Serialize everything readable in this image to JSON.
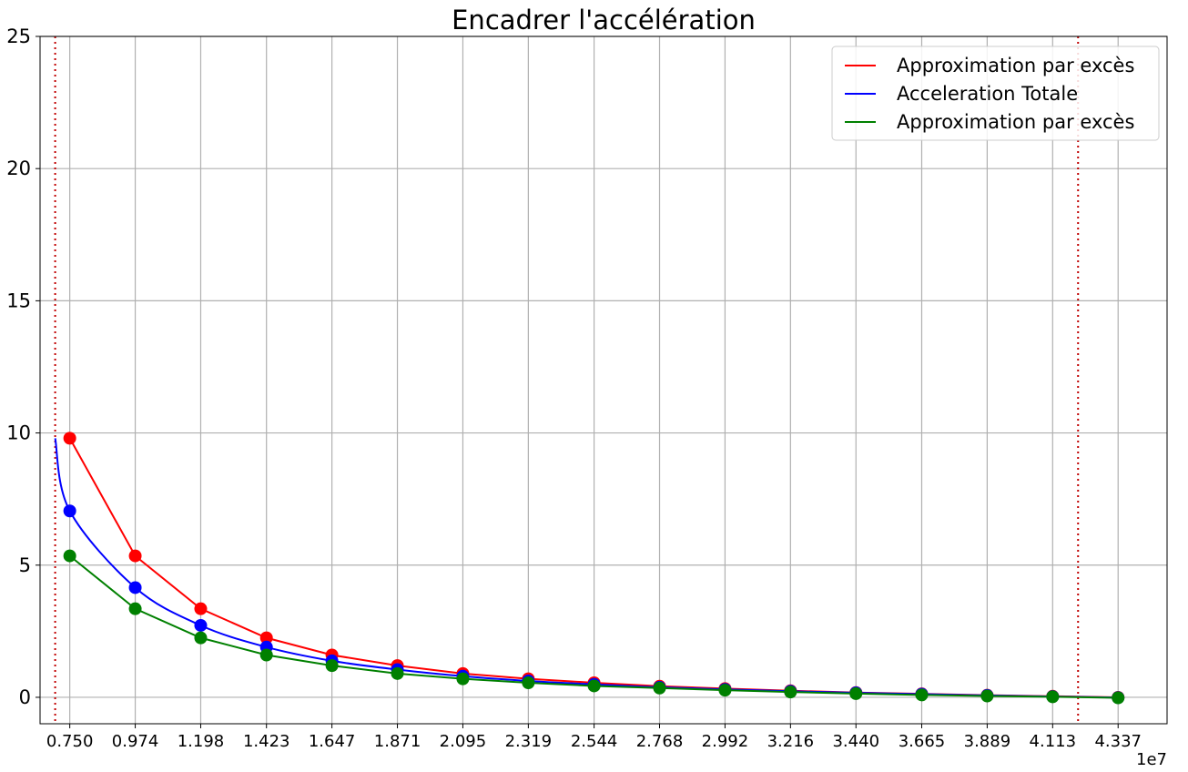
{
  "chart_data": {
    "type": "line",
    "title": "Encadrer l'accélération",
    "xlabel": "",
    "ylabel": "",
    "x_offset_label": "1e7",
    "xlim": [
      0.6483,
      4.5045
    ],
    "ylim": [
      -1,
      25
    ],
    "xticks": [
      "0.750",
      "0.974",
      "1.198",
      "1.423",
      "1.647",
      "1.871",
      "2.095",
      "2.319",
      "2.544",
      "2.768",
      "2.992",
      "3.216",
      "3.440",
      "3.665",
      "3.889",
      "4.113",
      "4.337"
    ],
    "yticks": [
      0,
      5,
      10,
      15,
      20,
      25
    ],
    "grid": true,
    "legend_position": "top-right",
    "bounds": [
      0.7,
      4.2
    ],
    "x": [
      0.75,
      0.974,
      1.198,
      1.423,
      1.647,
      1.871,
      2.095,
      2.319,
      2.544,
      2.768,
      2.992,
      3.216,
      3.44,
      3.665,
      3.889,
      4.113,
      4.337
    ],
    "series": [
      {
        "name": "Approximation par excès",
        "color": "#ff0000",
        "marker_color": "#ff0000",
        "values": [
          9.8,
          5.35,
          3.35,
          2.25,
          1.6,
          1.2,
          0.9,
          0.7,
          0.55,
          0.42,
          0.33,
          0.25,
          0.18,
          0.13,
          0.08,
          0.04,
          0.0
        ]
      },
      {
        "name": "Acceleration Totale",
        "color": "#0000ff",
        "marker_color": "#0000ff",
        "values": [
          7.05,
          4.15,
          2.72,
          1.9,
          1.38,
          1.05,
          0.8,
          0.62,
          0.49,
          0.38,
          0.3,
          0.23,
          0.17,
          0.12,
          0.07,
          0.03,
          -0.01
        ],
        "curve_start": [
          0.7,
          9.8
        ]
      },
      {
        "name": "Approximation par excès",
        "color": "#008000",
        "marker_color": "#008000",
        "values": [
          5.35,
          3.35,
          2.25,
          1.6,
          1.2,
          0.9,
          0.7,
          0.55,
          0.43,
          0.35,
          0.27,
          0.2,
          0.14,
          0.09,
          0.05,
          0.02,
          -0.02
        ]
      }
    ]
  }
}
